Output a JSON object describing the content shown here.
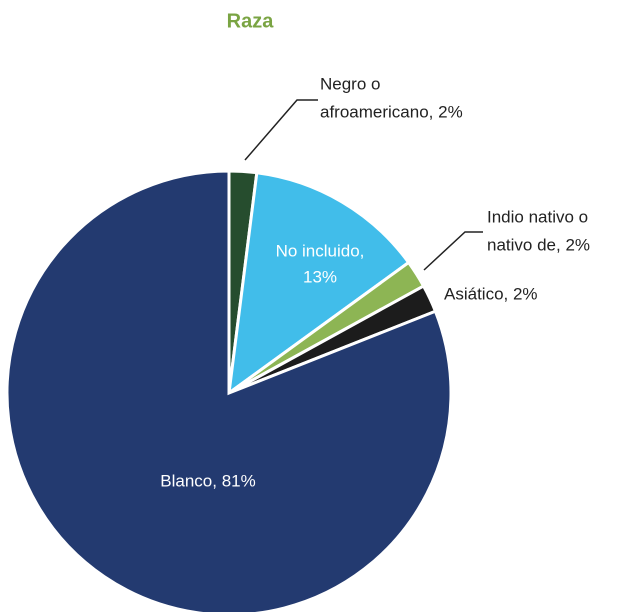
{
  "chart_data": {
    "type": "pie",
    "title": "Raza",
    "categories": [
      "Negro o afroamericano",
      "No incluido",
      "Indio nativo o nativo de",
      "Asiático",
      "Blanco"
    ],
    "values": [
      2,
      13,
      2,
      2,
      81
    ],
    "labels": [
      [
        "Negro o",
        "afroamericano, 2%"
      ],
      [
        "No incluido,",
        "13%"
      ],
      [
        "Indio nativo o",
        "nativo de, 2%"
      ],
      [
        "Asiático, 2%"
      ],
      [
        "Blanco, 81%"
      ]
    ],
    "colors": [
      "#264d2e",
      "#41bdea",
      "#8db554",
      "#1c1c1c",
      "#233a70"
    ]
  }
}
